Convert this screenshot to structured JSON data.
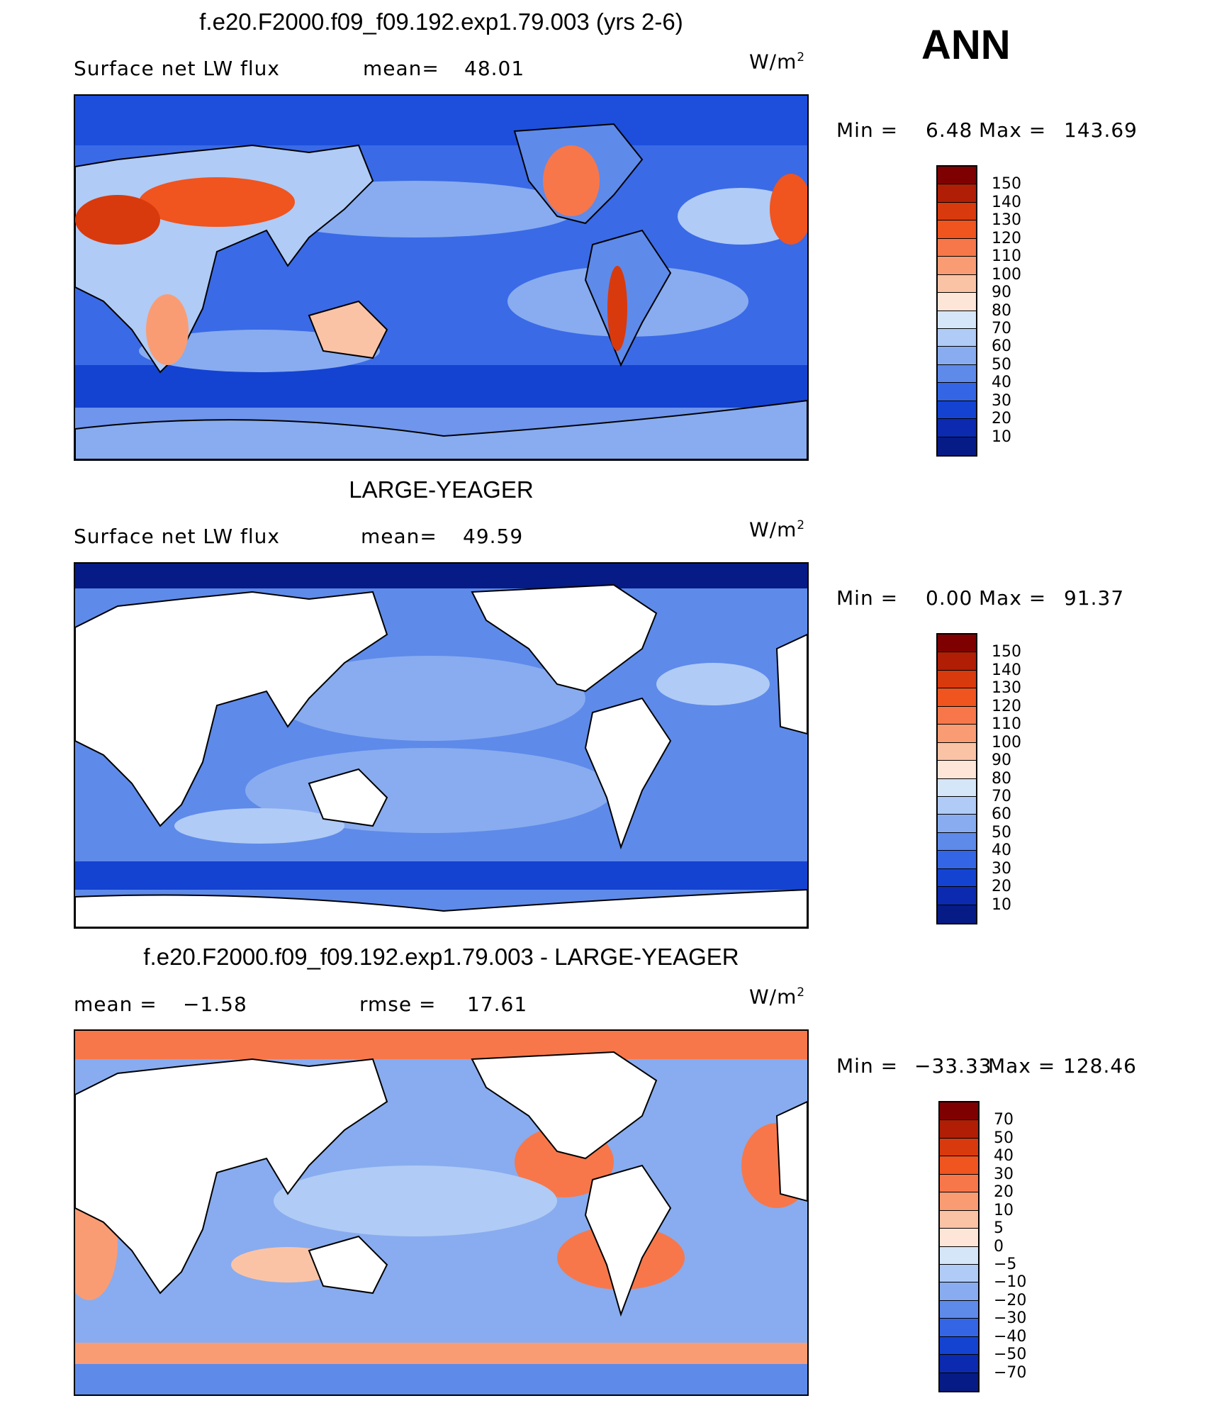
{
  "season": "ANN",
  "units": "W/m",
  "units_exp": "2",
  "panels": [
    {
      "title": "f.e20.F2000.f09_f09.192.exp1.79.003 (yrs 2-6)",
      "left_label": "Surface net LW flux",
      "mid_label": "mean=",
      "mid_value": "48.01",
      "min_label": "Min =",
      "min_value": "6.48",
      "max_label": "Max =",
      "max_value": "143.69",
      "levels": [
        "150",
        "140",
        "130",
        "120",
        "110",
        "100",
        "90",
        "80",
        "70",
        "60",
        "50",
        "40",
        "30",
        "20",
        "10"
      ],
      "colors": [
        "#7f0000",
        "#b01e05",
        "#d83a0d",
        "#f0541f",
        "#f7774a",
        "#f99c74",
        "#fbc3a6",
        "#fde6d7",
        "#d6e6f9",
        "#b0cbf5",
        "#88acef",
        "#5e8aea",
        "#3465e4",
        "#1443d1",
        "#0b2ab0",
        "#061b86"
      ]
    },
    {
      "title": "LARGE-YEAGER",
      "left_label": "Surface net LW flux",
      "mid_label": "mean=",
      "mid_value": "49.59",
      "min_label": "Min =",
      "min_value": "0.00",
      "max_label": "Max =",
      "max_value": "91.37",
      "levels": [
        "150",
        "140",
        "130",
        "120",
        "110",
        "100",
        "90",
        "80",
        "70",
        "60",
        "50",
        "40",
        "30",
        "20",
        "10"
      ],
      "colors": [
        "#7f0000",
        "#b01e05",
        "#d83a0d",
        "#f0541f",
        "#f7774a",
        "#f99c74",
        "#fbc3a6",
        "#fde6d7",
        "#d6e6f9",
        "#b0cbf5",
        "#88acef",
        "#5e8aea",
        "#3465e4",
        "#1443d1",
        "#0b2ab0",
        "#061b86"
      ]
    },
    {
      "title": "f.e20.F2000.f09_f09.192.exp1.79.003 - LARGE-YEAGER",
      "left_label": "mean =",
      "left_value": "−1.58",
      "mid_label": "rmse =",
      "mid_value": "17.61",
      "min_label": "Min =",
      "min_value": "−33.33",
      "max_label": "Max =",
      "max_value": "128.46",
      "levels": [
        "70",
        "50",
        "40",
        "30",
        "20",
        "10",
        "5",
        "0",
        "−5",
        "−10",
        "−20",
        "−30",
        "−40",
        "−50",
        "−70"
      ],
      "colors": [
        "#7f0000",
        "#b01e05",
        "#d83a0d",
        "#f0541f",
        "#f7774a",
        "#f99c74",
        "#fbc3a6",
        "#fde6d7",
        "#d6e6f9",
        "#b0cbf5",
        "#88acef",
        "#5e8aea",
        "#3465e4",
        "#1443d1",
        "#0b2ab0",
        "#061b86"
      ]
    }
  ]
}
